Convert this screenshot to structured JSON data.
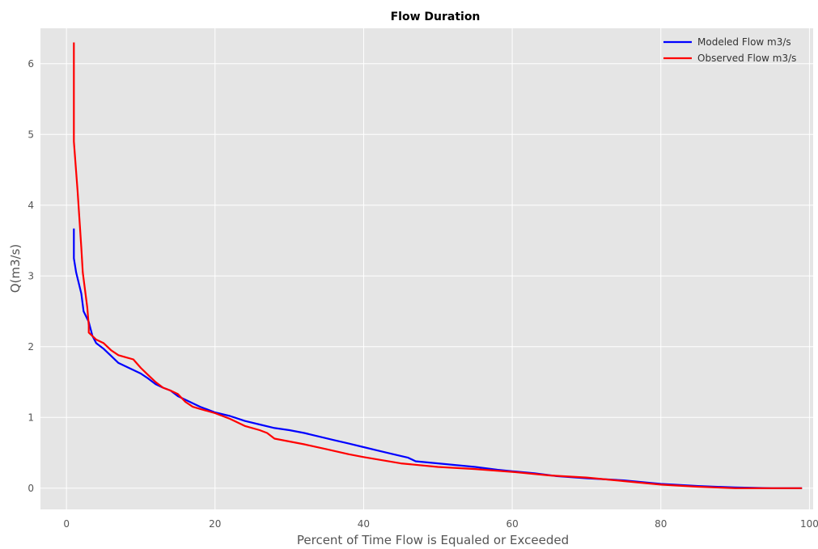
{
  "chart_data": {
    "type": "line",
    "title": "Flow Duration",
    "xlabel": "Percent of Time Flow is Equaled or Exceeded",
    "ylabel": "Q(m3/s)",
    "xlim": [
      -3.5,
      100.5
    ],
    "ylim": [
      -0.3,
      6.5
    ],
    "xticks": [
      0,
      20,
      40,
      60,
      80,
      100
    ],
    "yticks": [
      0,
      1,
      2,
      3,
      4,
      5,
      6
    ],
    "xtick_labels": [
      "0",
      "20",
      "40",
      "60",
      "80",
      "100"
    ],
    "ytick_labels": [
      "0",
      "1",
      "2",
      "3",
      "4",
      "5",
      "6"
    ],
    "grid": true,
    "legend_position": "top-right",
    "series": [
      {
        "name": "Modeled Flow m3/s",
        "color": "#0000ff",
        "x": [
          1,
          1,
          1.3,
          2,
          2.3,
          3,
          3.5,
          4,
          5,
          6,
          7,
          8,
          9,
          10,
          11,
          12,
          13,
          14,
          15,
          16,
          17,
          18,
          20,
          22,
          24,
          26,
          28,
          30,
          32,
          34,
          36,
          38,
          40,
          42,
          44,
          46,
          47,
          50,
          52,
          55,
          58,
          60,
          63,
          66,
          70,
          75,
          80,
          85,
          90,
          95,
          99
        ],
        "y": [
          3.67,
          3.25,
          3.05,
          2.75,
          2.5,
          2.35,
          2.15,
          2.05,
          1.97,
          1.87,
          1.77,
          1.72,
          1.67,
          1.62,
          1.55,
          1.47,
          1.42,
          1.38,
          1.3,
          1.25,
          1.2,
          1.15,
          1.07,
          1.02,
          0.95,
          0.9,
          0.85,
          0.82,
          0.78,
          0.73,
          0.68,
          0.63,
          0.58,
          0.53,
          0.48,
          0.43,
          0.38,
          0.35,
          0.33,
          0.3,
          0.26,
          0.24,
          0.21,
          0.17,
          0.14,
          0.11,
          0.06,
          0.03,
          0.01,
          0.0,
          0.0
        ]
      },
      {
        "name": "Observed Flow m3/s",
        "color": "#ff0000",
        "x": [
          1,
          1,
          1.5,
          2,
          2.2,
          2.8,
          3,
          3,
          4,
          5,
          6,
          7,
          8,
          9,
          10,
          11,
          12,
          13,
          14,
          15,
          16,
          17,
          18,
          20,
          22,
          24,
          26,
          27,
          28,
          30,
          32,
          35,
          38,
          40,
          45,
          50,
          55,
          60,
          65,
          70,
          75,
          80,
          85,
          90,
          95,
          99
        ],
        "y": [
          6.3,
          4.9,
          4.2,
          3.4,
          3.05,
          2.55,
          2.3,
          2.2,
          2.1,
          2.05,
          1.95,
          1.88,
          1.85,
          1.82,
          1.7,
          1.6,
          1.5,
          1.42,
          1.38,
          1.33,
          1.22,
          1.15,
          1.12,
          1.06,
          0.98,
          0.88,
          0.82,
          0.78,
          0.7,
          0.66,
          0.62,
          0.55,
          0.48,
          0.44,
          0.35,
          0.3,
          0.27,
          0.23,
          0.18,
          0.15,
          0.1,
          0.05,
          0.02,
          0.0,
          0.0,
          0.0
        ]
      }
    ]
  }
}
